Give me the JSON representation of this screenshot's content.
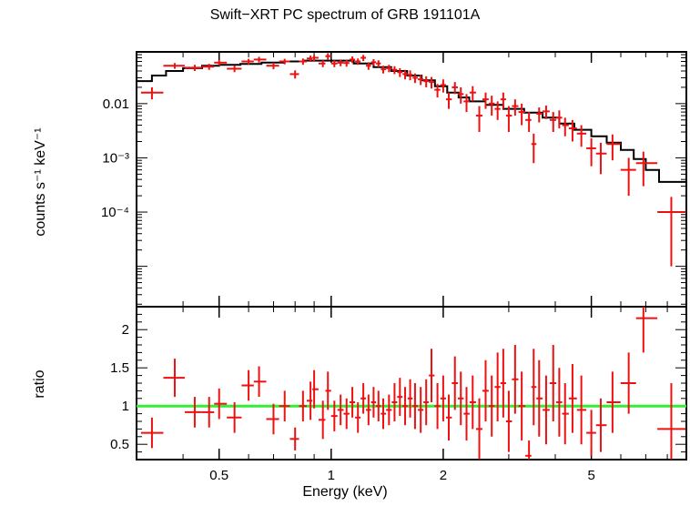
{
  "chart_data": [
    {
      "type": "scatter",
      "title": "Swift−XRT PC spectrum of GRB 191101A",
      "xlabel": "Energy (keV)",
      "ylabel": "counts s⁻¹ keV⁻¹",
      "xscale": "log",
      "yscale": "log",
      "xlim": [
        0.3,
        9.0
      ],
      "ylim": [
        1.8e-06,
        0.09
      ],
      "yticks": [
        {
          "v": 0.01,
          "label": "0.01"
        },
        {
          "v": 0.001,
          "label": "10⁻³"
        },
        {
          "v": 0.0001,
          "label": "10⁻⁴"
        }
      ],
      "xticks": [
        {
          "v": 0.5,
          "label": "0.5"
        },
        {
          "v": 1,
          "label": "1"
        },
        {
          "v": 2,
          "label": "2"
        },
        {
          "v": 5,
          "label": "5"
        }
      ],
      "data_series": {
        "x": [
          0.33,
          0.38,
          0.43,
          0.47,
          0.5,
          0.55,
          0.6,
          0.64,
          0.7,
          0.75,
          0.8,
          0.84,
          0.88,
          0.9,
          0.95,
          0.98,
          1.02,
          1.06,
          1.1,
          1.14,
          1.18,
          1.22,
          1.26,
          1.3,
          1.34,
          1.38,
          1.43,
          1.48,
          1.53,
          1.58,
          1.63,
          1.68,
          1.74,
          1.8,
          1.86,
          1.93,
          2.0,
          2.07,
          2.15,
          2.23,
          2.31,
          2.4,
          2.5,
          2.6,
          2.7,
          2.8,
          2.9,
          3.0,
          3.12,
          3.25,
          3.4,
          3.5,
          3.62,
          3.78,
          3.95,
          4.1,
          4.25,
          4.45,
          4.7,
          5.0,
          5.3,
          5.7,
          6.3,
          6.9,
          8.2
        ],
        "y": [
          0.016,
          0.05,
          0.046,
          0.048,
          0.057,
          0.044,
          0.06,
          0.065,
          0.05,
          0.06,
          0.035,
          0.06,
          0.068,
          0.07,
          0.055,
          0.075,
          0.055,
          0.057,
          0.056,
          0.065,
          0.06,
          0.07,
          0.05,
          0.058,
          0.055,
          0.043,
          0.045,
          0.042,
          0.038,
          0.035,
          0.034,
          0.03,
          0.028,
          0.026,
          0.025,
          0.018,
          0.022,
          0.012,
          0.02,
          0.015,
          0.011,
          0.016,
          0.006,
          0.012,
          0.01,
          0.008,
          0.012,
          0.006,
          0.009,
          0.007,
          0.005,
          0.0018,
          0.0065,
          0.0072,
          0.005,
          0.0055,
          0.004,
          0.0035,
          0.0028,
          0.0015,
          0.0012,
          0.0018,
          0.0006,
          0.0008,
          0.0001
        ],
        "yerr": [
          0.004,
          0.006,
          0.006,
          0.006,
          0.007,
          0.006,
          0.007,
          0.008,
          0.007,
          0.007,
          0.006,
          0.008,
          0.009,
          0.009,
          0.008,
          0.01,
          0.008,
          0.008,
          0.008,
          0.009,
          0.008,
          0.009,
          0.008,
          0.008,
          0.008,
          0.007,
          0.007,
          0.007,
          0.007,
          0.007,
          0.007,
          0.006,
          0.006,
          0.006,
          0.006,
          0.005,
          0.006,
          0.004,
          0.005,
          0.005,
          0.004,
          0.005,
          0.003,
          0.004,
          0.004,
          0.003,
          0.004,
          0.003,
          0.003,
          0.003,
          0.002,
          0.001,
          0.002,
          0.002,
          0.002,
          0.002,
          0.0015,
          0.0015,
          0.0012,
          0.0008,
          0.0007,
          0.0009,
          0.0004,
          0.0005,
          9e-05
        ]
      },
      "model_series": {
        "x": [
          0.3,
          0.33,
          0.36,
          0.4,
          0.45,
          0.5,
          0.57,
          0.65,
          0.75,
          0.85,
          1.0,
          1.15,
          1.3,
          1.45,
          1.6,
          1.75,
          1.9,
          2.05,
          2.2,
          2.35,
          2.6,
          2.9,
          3.3,
          3.7,
          4.1,
          4.5,
          5.0,
          5.5,
          6.0,
          6.5,
          7.0,
          7.6,
          9.0
        ],
        "y": [
          0.026,
          0.033,
          0.04,
          0.045,
          0.05,
          0.052,
          0.054,
          0.057,
          0.06,
          0.062,
          0.062,
          0.055,
          0.047,
          0.04,
          0.033,
          0.027,
          0.021,
          0.016,
          0.013,
          0.011,
          0.0095,
          0.008,
          0.0068,
          0.0055,
          0.0043,
          0.0033,
          0.0025,
          0.0019,
          0.0014,
          0.00095,
          0.0006,
          0.00036,
          0.00014
        ]
      }
    },
    {
      "type": "scatter",
      "xlabel": "Energy (keV)",
      "ylabel": "ratio",
      "xscale": "log",
      "xlim": [
        0.3,
        9.0
      ],
      "ylim": [
        0.3,
        2.3
      ],
      "yticks": [
        {
          "v": 0.5,
          "label": "0.5"
        },
        {
          "v": 1,
          "label": "1"
        },
        {
          "v": 1.5,
          "label": "1.5"
        },
        {
          "v": 2,
          "label": "2"
        }
      ],
      "reference_line": 1,
      "reference_color": "#33ee33",
      "data_series": {
        "x": [
          0.33,
          0.38,
          0.43,
          0.47,
          0.5,
          0.55,
          0.6,
          0.64,
          0.7,
          0.75,
          0.8,
          0.84,
          0.88,
          0.9,
          0.95,
          0.98,
          1.02,
          1.06,
          1.1,
          1.14,
          1.18,
          1.22,
          1.26,
          1.3,
          1.34,
          1.38,
          1.43,
          1.48,
          1.53,
          1.58,
          1.63,
          1.68,
          1.74,
          1.8,
          1.86,
          1.93,
          2.0,
          2.07,
          2.15,
          2.23,
          2.31,
          2.4,
          2.5,
          2.6,
          2.7,
          2.8,
          2.9,
          3.0,
          3.12,
          3.25,
          3.4,
          3.5,
          3.62,
          3.78,
          3.95,
          4.1,
          4.25,
          4.45,
          4.7,
          5.0,
          5.3,
          5.7,
          6.3,
          6.9,
          8.2
        ],
        "y": [
          0.65,
          1.37,
          0.92,
          0.92,
          1.03,
          0.85,
          1.27,
          1.32,
          0.83,
          1.0,
          0.57,
          1.0,
          1.07,
          1.22,
          0.82,
          1.2,
          0.87,
          0.95,
          0.9,
          1.05,
          0.85,
          1.1,
          0.95,
          1.05,
          1.0,
          0.9,
          0.95,
          1.05,
          1.12,
          1.0,
          1.1,
          1.0,
          0.95,
          1.05,
          1.4,
          1.0,
          1.1,
          0.85,
          1.3,
          1.1,
          0.9,
          1.05,
          0.7,
          1.2,
          1.0,
          1.25,
          1.3,
          0.8,
          1.35,
          1.0,
          0.35,
          1.25,
          1.1,
          0.95,
          1.3,
          1.05,
          0.9,
          1.1,
          0.95,
          0.65,
          0.75,
          1.05,
          1.3,
          2.15,
          0.7
        ],
        "yerr": [
          0.2,
          0.25,
          0.2,
          0.2,
          0.2,
          0.2,
          0.2,
          0.2,
          0.2,
          0.2,
          0.15,
          0.2,
          0.25,
          0.25,
          0.25,
          0.25,
          0.2,
          0.2,
          0.2,
          0.2,
          0.2,
          0.2,
          0.2,
          0.2,
          0.2,
          0.2,
          0.2,
          0.25,
          0.25,
          0.25,
          0.25,
          0.3,
          0.3,
          0.3,
          0.35,
          0.3,
          0.3,
          0.3,
          0.35,
          0.35,
          0.35,
          0.35,
          0.4,
          0.4,
          0.4,
          0.45,
          0.45,
          0.4,
          0.45,
          0.45,
          0.2,
          0.5,
          0.5,
          0.45,
          0.5,
          0.45,
          0.4,
          0.45,
          0.45,
          0.3,
          0.35,
          0.4,
          0.4,
          0.45,
          0.6
        ]
      }
    }
  ]
}
